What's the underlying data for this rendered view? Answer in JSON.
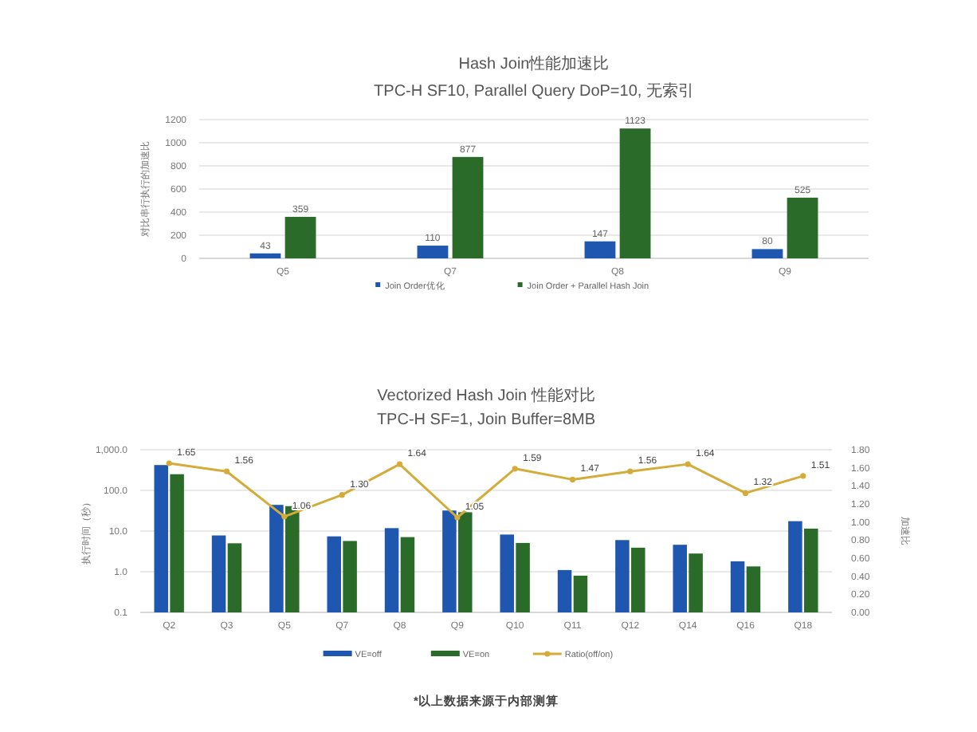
{
  "chart_data": [
    {
      "type": "bar",
      "title": "Hash Join性能加速比",
      "subtitle": "TPC-H SF10, Parallel Query DoP=10, 无索引",
      "ylabel": "对比串行执行的加速比",
      "categories": [
        "Q5",
        "Q7",
        "Q8",
        "Q9"
      ],
      "series": [
        {
          "name": "Join Order优化",
          "color": "#1f56b0",
          "values": [
            43,
            110,
            147,
            80
          ]
        },
        {
          "name": "Join Order + Parallel Hash Join",
          "color": "#2a6b2a",
          "values": [
            359,
            877,
            1123,
            525
          ]
        }
      ],
      "ylim": [
        0,
        1200
      ],
      "yticks": [
        0,
        200,
        400,
        600,
        800,
        1000,
        1200
      ],
      "grid": "y",
      "legend": "bottom",
      "data_labels": true
    },
    {
      "type": "bar",
      "title": "Vectorized  Hash Join 性能对比",
      "subtitle": "TPC-H SF=1, Join Buffer=8MB",
      "ylabel": "执行时间（秒）",
      "y2label": "加速比",
      "categories": [
        "Q2",
        "Q3",
        "Q5",
        "Q7",
        "Q8",
        "Q9",
        "Q10",
        "Q11",
        "Q12",
        "Q14",
        "Q16",
        "Q18"
      ],
      "series": [
        {
          "name": "VE=off",
          "color": "#1f56b0",
          "values": [
            420,
            7.8,
            44,
            7.4,
            11.8,
            32,
            8.2,
            1.1,
            6.0,
            4.6,
            1.8,
            17.5
          ]
        },
        {
          "name": "VE=on",
          "color": "#2a6b2a",
          "values": [
            250,
            5.0,
            41,
            5.7,
            7.1,
            29,
            5.1,
            0.8,
            3.9,
            2.8,
            1.35,
            11.5
          ]
        },
        {
          "name": "Ratio(off/on)",
          "type": "line",
          "axis": "y2",
          "color": "#d4ac3a",
          "marker": "circle",
          "values": [
            1.65,
            1.56,
            1.06,
            1.3,
            1.64,
            1.05,
            1.59,
            1.47,
            1.56,
            1.64,
            1.32,
            1.51
          ],
          "value_labels": [
            "1.65",
            "1.56",
            "1.06",
            "1.30",
            "1.64",
            "1.05",
            "1.59",
            "1.47",
            "1.56",
            "1.64",
            "1.32",
            "1.51"
          ]
        }
      ],
      "log": "y",
      "ylim": [
        0.1,
        1000
      ],
      "yticks": [
        {
          "value": 0.1,
          "label": "0.1"
        },
        {
          "value": 1,
          "label": "1.0"
        },
        {
          "value": 10,
          "label": "10.0"
        },
        {
          "value": 100,
          "label": "100.0"
        },
        {
          "value": 1000,
          "label": "1,000.0"
        }
      ],
      "y2lim": [
        0,
        1.8
      ],
      "y2ticks": [
        {
          "value": 0,
          "label": "0.00"
        },
        {
          "value": 0.2,
          "label": "0.20"
        },
        {
          "value": 0.4,
          "label": "0.40"
        },
        {
          "value": 0.6,
          "label": "0.60"
        },
        {
          "value": 0.8,
          "label": "0.80"
        },
        {
          "value": 1,
          "label": "1.00"
        },
        {
          "value": 1.2,
          "label": "1.20"
        },
        {
          "value": 1.4,
          "label": "1.40"
        },
        {
          "value": 1.6,
          "label": "1.60"
        },
        {
          "value": 1.8,
          "label": "1.80"
        }
      ],
      "grid": "y",
      "legend": "bottom",
      "annotations": [
        "*以上数据来源于内部测算"
      ]
    }
  ]
}
